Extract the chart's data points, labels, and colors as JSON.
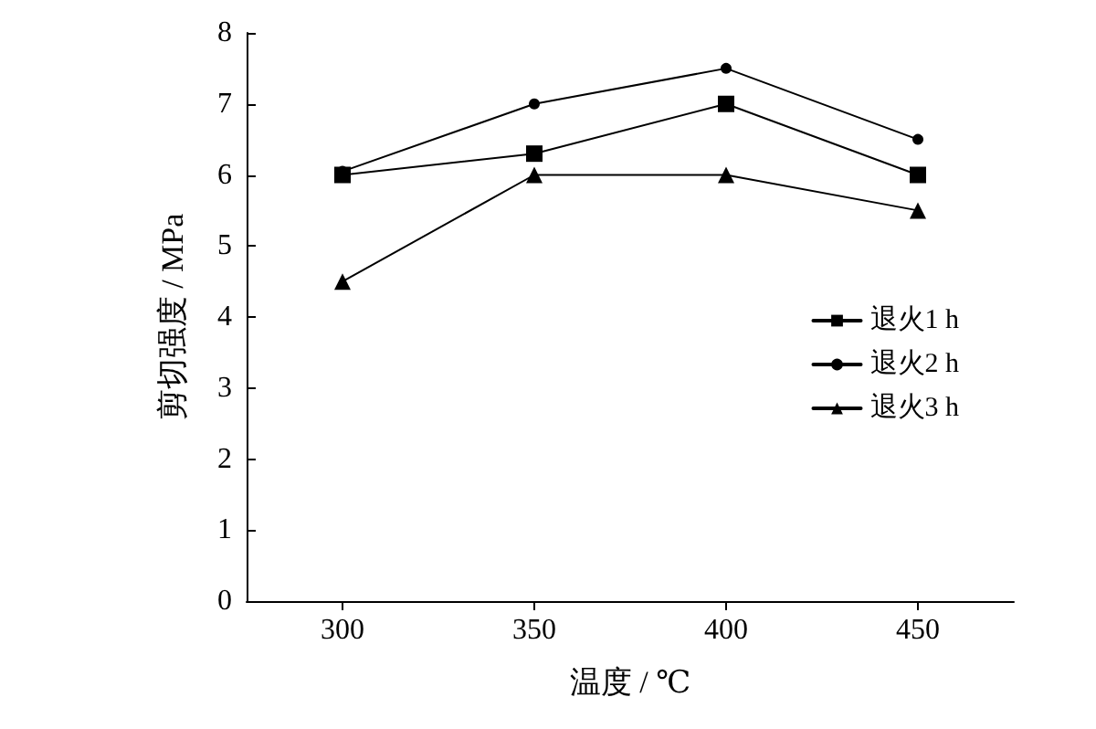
{
  "chart_data": {
    "type": "line",
    "xlabel": "温度 / ℃",
    "ylabel": "剪切强度 / MPa",
    "x": [
      300,
      350,
      400,
      450
    ],
    "xlim": [
      275,
      475
    ],
    "xticks": [
      300,
      350,
      400,
      450
    ],
    "ylim": [
      0,
      8
    ],
    "yticks": [
      0,
      1,
      2,
      3,
      4,
      5,
      6,
      7,
      8
    ],
    "grid": false,
    "legend": "right",
    "line_style": "solid",
    "series": [
      {
        "name": "退火1 h",
        "color": "#000000",
        "marker": "square",
        "values": [
          6.0,
          6.3,
          7.0,
          6.0
        ]
      },
      {
        "name": "退火2 h",
        "color": "#000000",
        "marker": "circle",
        "values": [
          6.05,
          7.0,
          7.5,
          6.5
        ]
      },
      {
        "name": "退火3 h",
        "color": "#000000",
        "marker": "triangle",
        "values": [
          4.5,
          6.0,
          6.0,
          5.5
        ]
      }
    ]
  }
}
